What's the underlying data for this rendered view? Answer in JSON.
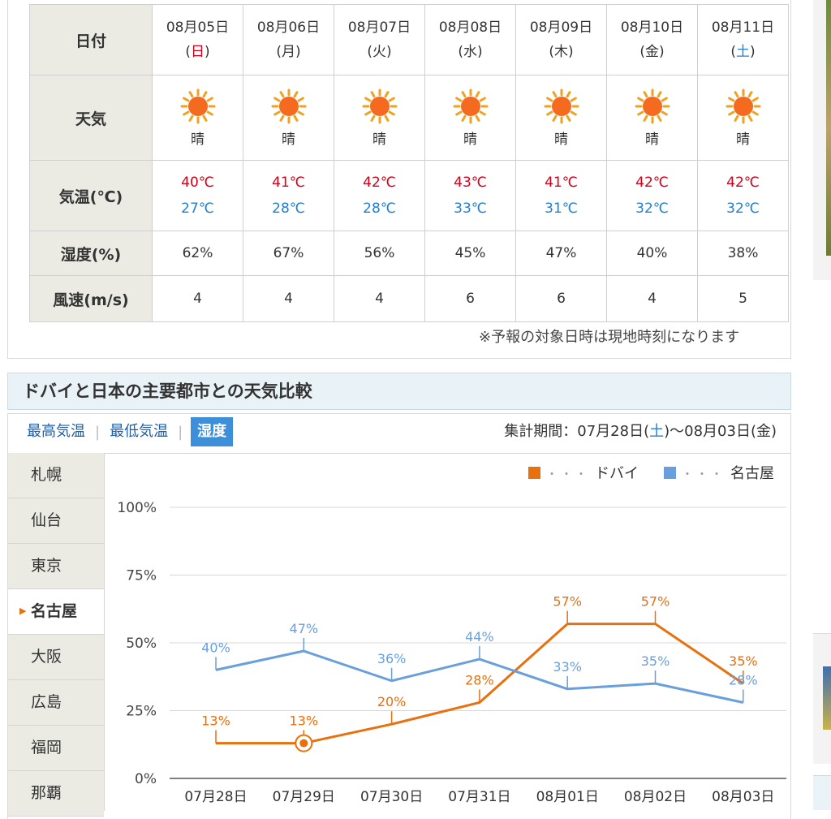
{
  "forecast": {
    "row_labels": {
      "date": "日付",
      "weather": "天気",
      "temp": "気温(℃)",
      "humidity": "湿度(%)",
      "wind": "風速(m/s)"
    },
    "days": [
      {
        "date": "08月05日",
        "dow": "日",
        "weather": "晴",
        "high": "40℃",
        "low": "27℃",
        "humidity": "62%",
        "wind": "4"
      },
      {
        "date": "08月06日",
        "dow": "月",
        "weather": "晴",
        "high": "41℃",
        "low": "28℃",
        "humidity": "67%",
        "wind": "4"
      },
      {
        "date": "08月07日",
        "dow": "火",
        "weather": "晴",
        "high": "42℃",
        "low": "28℃",
        "humidity": "56%",
        "wind": "4"
      },
      {
        "date": "08月08日",
        "dow": "水",
        "weather": "晴",
        "high": "43℃",
        "low": "33℃",
        "humidity": "45%",
        "wind": "6"
      },
      {
        "date": "08月09日",
        "dow": "木",
        "weather": "晴",
        "high": "41℃",
        "low": "31℃",
        "humidity": "47%",
        "wind": "6"
      },
      {
        "date": "08月10日",
        "dow": "金",
        "weather": "晴",
        "high": "42℃",
        "low": "32℃",
        "humidity": "40%",
        "wind": "4"
      },
      {
        "date": "08月11日",
        "dow": "土",
        "weather": "晴",
        "high": "42℃",
        "low": "32℃",
        "humidity": "38%",
        "wind": "5"
      }
    ],
    "note": "※予報の対象日時は現地時刻になります"
  },
  "comparison": {
    "title": "ドバイと日本の主要都市との天気比較",
    "tabs": [
      "最高気温",
      "最低気温",
      "湿度"
    ],
    "active_tab": "湿度",
    "period_label": "集計期間：07月28日(",
    "period_sat": "土",
    "period_end": ")〜08月03日(金)",
    "cities": [
      "札幌",
      "仙台",
      "東京",
      "名古屋",
      "大阪",
      "広島",
      "福岡",
      "那覇"
    ],
    "selected_city": "名古屋"
  },
  "chart_data": {
    "type": "line",
    "categories": [
      "07月28日",
      "07月29日",
      "07月30日",
      "07月31日",
      "08月01日",
      "08月02日",
      "08月03日"
    ],
    "series": [
      {
        "name": "ドバイ",
        "color": "#e8700d",
        "values": [
          13,
          13,
          20,
          28,
          57,
          57,
          35
        ]
      },
      {
        "name": "名古屋",
        "color": "#6a9fde",
        "values": [
          40,
          47,
          36,
          44,
          33,
          35,
          28
        ]
      }
    ],
    "legend_dots": "・・・",
    "ylim": [
      0,
      100
    ],
    "yticks": [
      "0%",
      "25%",
      "50%",
      "75%",
      "100%"
    ],
    "ytick_values": [
      0,
      25,
      50,
      75,
      100
    ],
    "unit": "%",
    "highlight_index": 1
  }
}
